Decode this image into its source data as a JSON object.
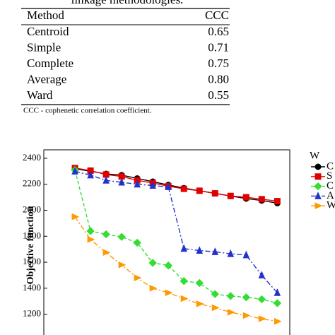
{
  "table": {
    "title": "linkage methodologies.",
    "header": [
      "Method",
      "CCC"
    ],
    "rows": [
      [
        "Centroid",
        "0.65"
      ],
      [
        "Simple",
        "0.71"
      ],
      [
        "Complete",
        "0.75"
      ],
      [
        "Average",
        "0.80"
      ],
      [
        "Ward",
        "0.55"
      ]
    ],
    "note": "CCC - cophenetic correlation coefficient."
  },
  "chart_data": {
    "type": "line",
    "ylabel": "Objective function",
    "x": [
      1,
      2,
      3,
      4,
      5,
      6,
      7,
      8,
      9,
      10,
      11,
      12,
      13,
      14
    ],
    "xlim": [
      -1,
      14.8
    ],
    "ylim": [
      1040,
      2465
    ],
    "yticks": [
      1200,
      1400,
      1600,
      1800,
      2000,
      2200,
      2400
    ],
    "legend_title": "W",
    "series": [
      {
        "name": "C",
        "color": "#000000",
        "marker": "circle",
        "dash": "solid",
        "values": [
          2320,
          2300,
          2280,
          2270,
          2245,
          2220,
          2195,
          2170,
          2150,
          2130,
          2110,
          2090,
          2075,
          2055
        ]
      },
      {
        "name": "S",
        "color": "#e00000",
        "marker": "square",
        "dash": "solid",
        "values": [
          2325,
          2305,
          2275,
          2260,
          2230,
          2210,
          2185,
          2165,
          2150,
          2130,
          2110,
          2100,
          2085,
          2070
        ]
      },
      {
        "name": "C",
        "color": "#33dd33",
        "marker": "diamond",
        "dash": "dashed",
        "values": [
          2310,
          1840,
          1815,
          1795,
          1750,
          1595,
          1575,
          1455,
          1440,
          1355,
          1340,
          1330,
          1315,
          1285
        ]
      },
      {
        "name": "A",
        "color": "#2233cc",
        "marker": "triangle",
        "dash": "dashdot",
        "values": [
          2300,
          2270,
          2230,
          2215,
          2200,
          2190,
          2180,
          1705,
          1690,
          1680,
          1665,
          1655,
          1500,
          1365
        ]
      },
      {
        "name": "W",
        "color": "#ff9900",
        "marker": "triangle-right",
        "dash": "dashdot",
        "values": [
          1950,
          1775,
          1675,
          1580,
          1480,
          1400,
          1365,
          1320,
          1280,
          1250,
          1215,
          1190,
          1165,
          1145
        ]
      }
    ]
  }
}
